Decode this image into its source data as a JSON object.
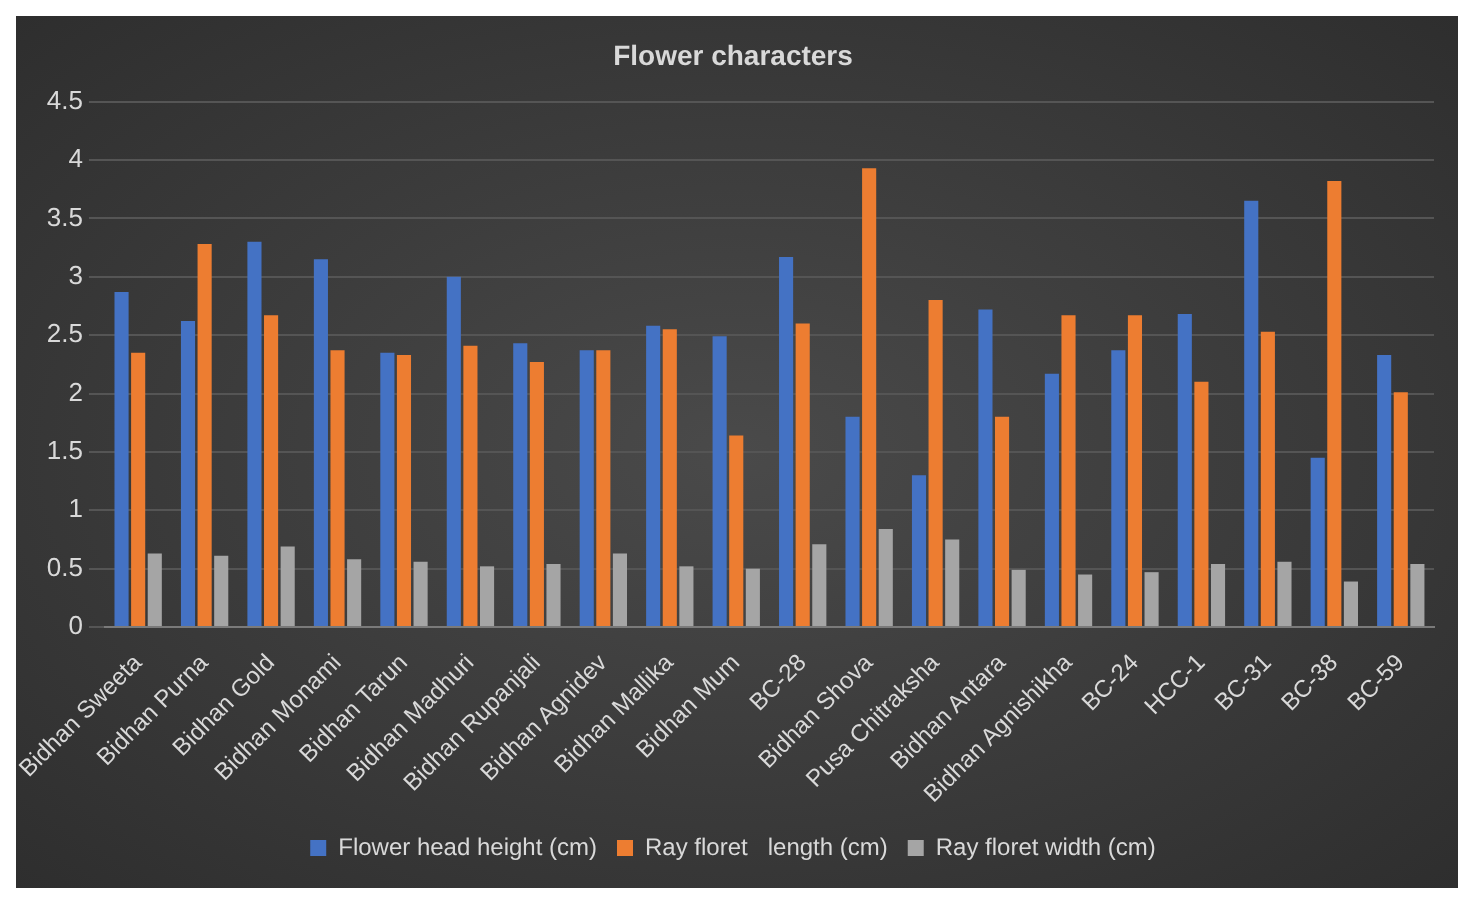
{
  "chart_data": {
    "type": "bar",
    "title": "Flower characters",
    "categories": [
      "Bidhan Sweeta",
      "Bidhan Purna",
      "Bidhan Gold",
      "Bidhan Monami",
      "Bidhan Tarun",
      "Bidhan Madhuri",
      "Bidhan Rupanjali",
      "Bidhan Agnidev",
      "Bidhan Mallika",
      "Bidhan Mum",
      "BC-28",
      "Bidhan Shova",
      "Pusa Chitraksha",
      "Bidhan Antara",
      "Bidhan Agnishikha",
      "BC-24",
      "HCC-1",
      "BC-31",
      "BC-38",
      "BC-59"
    ],
    "series": [
      {
        "name": "Flower head height (cm)",
        "color": "#4472c4",
        "values": [
          2.87,
          2.62,
          3.3,
          3.15,
          2.35,
          3.0,
          2.43,
          2.37,
          2.58,
          2.49,
          3.17,
          1.8,
          1.3,
          2.72,
          2.17,
          2.37,
          2.68,
          3.65,
          1.45,
          2.33
        ]
      },
      {
        "name": "Ray floret   length (cm)",
        "color": "#ed7d31",
        "values": [
          2.35,
          3.28,
          2.67,
          2.37,
          2.33,
          2.41,
          2.27,
          2.37,
          2.55,
          1.64,
          2.6,
          3.93,
          2.8,
          1.8,
          2.67,
          2.67,
          2.1,
          2.53,
          3.82,
          2.01
        ]
      },
      {
        "name": "Ray floret width (cm)",
        "color": "#a5a5a5",
        "values": [
          0.63,
          0.61,
          0.69,
          0.58,
          0.56,
          0.52,
          0.54,
          0.63,
          0.52,
          0.5,
          0.71,
          0.84,
          0.75,
          0.49,
          0.45,
          0.47,
          0.54,
          0.56,
          0.39,
          0.54
        ]
      }
    ],
    "ylim": [
      0,
      4.5
    ],
    "yticks": [
      0,
      0.5,
      1,
      1.5,
      2,
      2.5,
      3,
      3.5,
      4,
      4.5
    ],
    "grid": "y",
    "legend": "bottom"
  }
}
